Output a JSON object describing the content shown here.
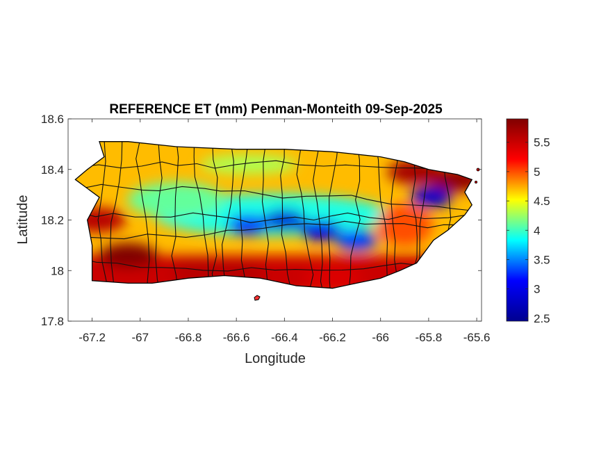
{
  "title": "REFERENCE ET (mm) Penman-Monteith 09-Sep-2025",
  "xlabel": "Longitude",
  "ylabel": "Latitude",
  "map": {
    "xlim": [
      -67.3,
      -65.58
    ],
    "ylim": [
      17.8,
      18.6
    ],
    "xticks": [
      -67.2,
      -67,
      -66.8,
      -66.6,
      -66.4,
      -66.2,
      -66,
      -65.8,
      -65.6
    ],
    "xtick_labels": [
      "-67.2",
      "-67",
      "-66.8",
      "-66.6",
      "-66.4",
      "-66.2",
      "-66",
      "-65.8",
      "-65.6"
    ],
    "yticks": [
      17.8,
      18,
      18.2,
      18.4,
      18.6
    ],
    "ytick_labels": [
      "17.8",
      "18",
      "18.2",
      "18.4",
      "18.6"
    ],
    "colormap": "jet",
    "island_outline": [
      [
        -67.17,
        18.51
      ],
      [
        -67.05,
        18.51
      ],
      [
        -66.85,
        18.49
      ],
      [
        -66.6,
        18.48
      ],
      [
        -66.4,
        18.48
      ],
      [
        -66.2,
        18.47
      ],
      [
        -66.0,
        18.45
      ],
      [
        -65.9,
        18.43
      ],
      [
        -65.8,
        18.4
      ],
      [
        -65.68,
        18.38
      ],
      [
        -65.62,
        18.36
      ],
      [
        -65.65,
        18.31
      ],
      [
        -65.62,
        18.26
      ],
      [
        -65.65,
        18.22
      ],
      [
        -65.72,
        18.16
      ],
      [
        -65.78,
        18.12
      ],
      [
        -65.85,
        18.03
      ],
      [
        -65.92,
        18.0
      ],
      [
        -66.0,
        17.97
      ],
      [
        -66.1,
        17.95
      ],
      [
        -66.2,
        17.93
      ],
      [
        -66.35,
        17.94
      ],
      [
        -66.5,
        17.97
      ],
      [
        -66.65,
        17.98
      ],
      [
        -66.8,
        17.97
      ],
      [
        -66.95,
        17.95
      ],
      [
        -67.05,
        17.95
      ],
      [
        -67.2,
        17.96
      ],
      [
        -67.2,
        18.01
      ],
      [
        -67.2,
        18.1
      ],
      [
        -67.22,
        18.2
      ],
      [
        -67.17,
        18.29
      ],
      [
        -67.27,
        18.36
      ],
      [
        -67.22,
        18.4
      ],
      [
        -67.15,
        18.45
      ]
    ],
    "dry_spots": [
      {
        "lon": -67.05,
        "lat": 18.06,
        "value": 5.9
      },
      {
        "lon": -66.75,
        "lat": 18.0,
        "value": 5.6
      },
      {
        "lon": -66.6,
        "lat": 17.99,
        "value": 5.6
      },
      {
        "lon": -65.68,
        "lat": 18.36,
        "value": 5.8
      },
      {
        "lon": -65.85,
        "lat": 18.39,
        "value": 5.7
      },
      {
        "lon": -66.2,
        "lat": 17.97,
        "value": 5.4
      },
      {
        "lon": -67.18,
        "lat": 18.2,
        "value": 5.6
      }
    ],
    "wet_spots": [
      {
        "lon": -66.4,
        "lat": 18.2,
        "value": 2.9
      },
      {
        "lon": -66.25,
        "lat": 18.16,
        "value": 3.0
      },
      {
        "lon": -65.79,
        "lat": 18.29,
        "value": 2.8
      },
      {
        "lon": -66.55,
        "lat": 18.18,
        "value": 3.3
      },
      {
        "lon": -66.1,
        "lat": 18.12,
        "value": 3.3
      }
    ]
  },
  "colorbar": {
    "min": 2.45,
    "max": 5.9,
    "ticks": [
      2.5,
      3,
      3.5,
      4,
      4.5,
      5,
      5.5
    ],
    "tick_labels": [
      "2.5",
      "3",
      "3.5",
      "4",
      "4.5",
      "5",
      "5.5"
    ],
    "colors": [
      "#00008f",
      "#0000ff",
      "#00ffff",
      "#ffff00",
      "#ff0000",
      "#800000"
    ]
  }
}
